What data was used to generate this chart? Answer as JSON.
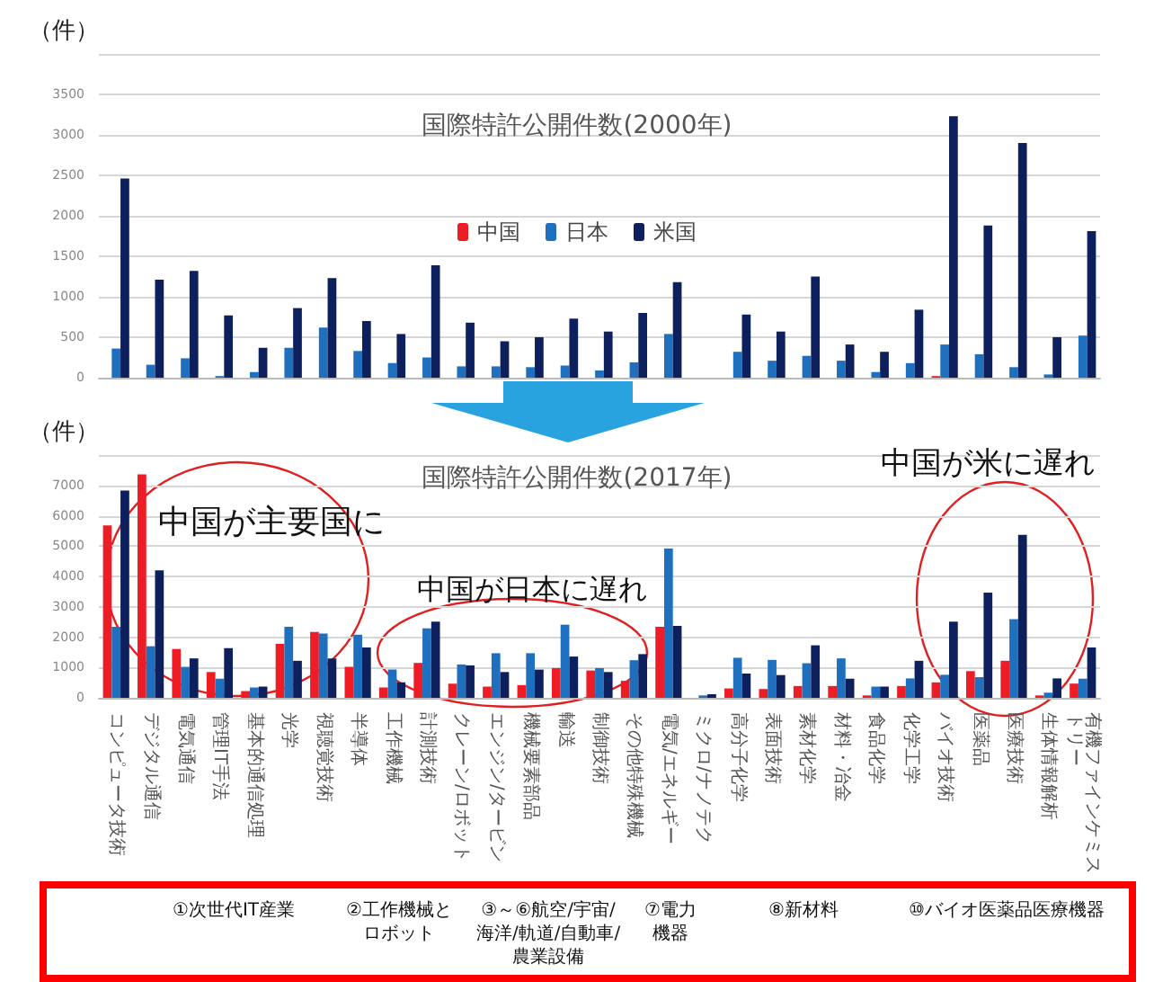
{
  "chart_data": [
    {
      "type": "bar",
      "title": "国際特許公開件数(2000年)",
      "ylabel": "（件）",
      "categories": [
        null,
        null,
        null,
        null,
        null,
        null,
        null,
        null,
        null,
        null,
        null,
        null,
        null,
        null,
        null,
        null,
        null,
        null,
        null,
        null,
        null,
        null,
        null,
        null,
        null,
        null,
        null,
        null,
        null
      ],
      "series": [
        {
          "name": "中国",
          "color": "#ee1c24",
          "values": [
            0,
            0,
            0,
            0,
            0,
            0,
            0,
            0,
            0,
            0,
            0,
            0,
            0,
            0,
            0,
            0,
            0,
            0,
            0,
            0,
            0,
            0,
            0,
            0,
            20,
            0,
            0,
            0,
            0
          ]
        },
        {
          "name": "日本",
          "color": "#1f6fbf",
          "values": [
            360,
            160,
            240,
            20,
            70,
            370,
            620,
            330,
            180,
            250,
            140,
            140,
            130,
            150,
            90,
            190,
            540,
            0,
            320,
            210,
            270,
            210,
            70,
            180,
            410,
            290,
            130,
            40,
            520
          ]
        },
        {
          "name": "米国",
          "color": "#0d1f5c",
          "values": [
            2460,
            1210,
            1320,
            770,
            370,
            860,
            1230,
            700,
            540,
            1390,
            680,
            450,
            500,
            730,
            570,
            800,
            1180,
            0,
            780,
            570,
            1250,
            410,
            320,
            840,
            3230,
            1880,
            2900,
            500,
            1810
          ]
        }
      ],
      "ylim": [
        0,
        4000
      ],
      "yticks": [
        0,
        500,
        1000,
        1500,
        2000,
        2500,
        3000,
        3500,
        {
          "value": 4000,
          "label": null
        }
      ],
      "grid": "y",
      "legend": "center",
      "tick_labels": "y"
    },
    {
      "type": "bar",
      "title": "国際特許公開件数(2017年)",
      "ylabel": "（件）",
      "categories": [
        "コンピュータ技術",
        "デジタル通信",
        "電気通信",
        "管理IT手法",
        "基本的通信処理",
        "光学",
        "視聴覚技術",
        "半導体",
        "工作機械",
        "計測技術",
        "クレーン/ロボット",
        "エンジン/タービン",
        "機械要素部品",
        "輸送",
        "制御技術",
        "その他特殊機械",
        "電気/エネルギー",
        "ミクロ/ナノテク",
        "高分子化学",
        "表面技術",
        "素材化学",
        "材料・冶金",
        "食品化学",
        "化学工学",
        "バイオ技術",
        "医薬品",
        "医療技術",
        "生体情報解析",
        "有機ファインケミストリー"
      ],
      "series": [
        {
          "color": "#ee1c24",
          "values": [
            5680,
            7360,
            1610,
            850,
            220,
            1780,
            2170,
            1020,
            340,
            1150,
            470,
            370,
            420,
            980,
            900,
            560,
            2340,
            null,
            310,
            290,
            390,
            390,
            80,
            390,
            510,
            880,
            1220,
            80,
            470
          ]
        },
        {
          "color": "#1f6fbf",
          "values": [
            2340,
            1700,
            1020,
            630,
            340,
            2340,
            2120,
            2080,
            930,
            2290,
            1100,
            1470,
            1470,
            2410,
            980,
            1240,
            4920,
            80,
            1320,
            1250,
            1140,
            1300,
            370,
            640,
            760,
            680,
            2590,
            170,
            630
          ]
        },
        {
          "color": "#0d1f5c",
          "values": [
            6830,
            4200,
            1300,
            1640,
            370,
            1220,
            1300,
            1660,
            510,
            2510,
            1070,
            850,
            930,
            1360,
            850,
            1440,
            2370,
            120,
            800,
            750,
            1730,
            630,
            370,
            1220,
            2510,
            3470,
            5370,
            640,
            1660
          ]
        }
      ],
      "ylim": [
        0,
        8000
      ],
      "yticks": [
        0,
        1000,
        2000,
        3000,
        4000,
        5000,
        6000,
        7000,
        {
          "value": 8000,
          "label": null
        }
      ],
      "grid": "y",
      "annotations": [
        "中国が主要国に",
        "中国が日本に遅れ",
        "中国が米に遅れ",
        "①次世代IT産業",
        "②工作機械とロボット",
        "③～⑥航空/宇宙/海洋/軌道/自動車/農業設備",
        "⑦電力機器",
        "⑧新材料",
        "⑩バイオ医薬品医療機器"
      ]
    }
  ]
}
